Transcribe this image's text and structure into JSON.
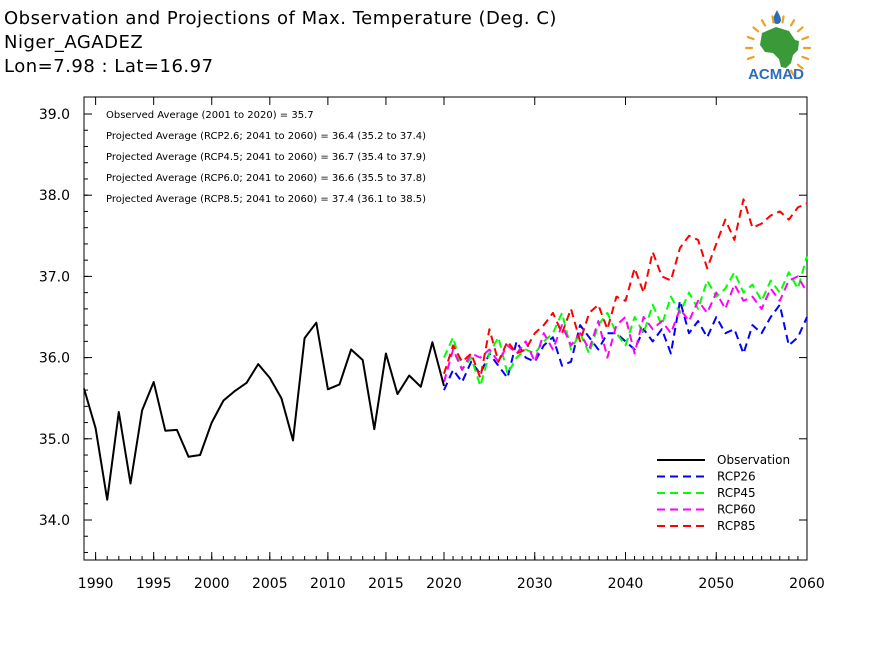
{
  "header": {
    "title_line1": "Observation and Projections of Max. Temperature (Deg. C)",
    "title_line2": "Niger_AGADEZ",
    "title_line3": "Lon=7.98 : Lat=16.97"
  },
  "logo": {
    "text": "ACMAD",
    "color_blue": "#2a6ebb",
    "color_orange": "#f0a020",
    "color_green": "#3a9a3a"
  },
  "chart_data": {
    "type": "line",
    "title": "Observation and Projections of Max. Temperature (Deg. C)",
    "xlabel": "",
    "ylabel": "",
    "xlim": [
      1989,
      2060
    ],
    "ylim": [
      33.5,
      39.3
    ],
    "x_ticks_left": [
      1990,
      1995,
      2000,
      2005,
      2010,
      2015,
      2020
    ],
    "x_ticks_right": [
      2030,
      2040,
      2050,
      2060
    ],
    "y_ticks": [
      34.0,
      35.0,
      36.0,
      37.0,
      38.0,
      39.0
    ],
    "y_tick_labels": [
      "34.0",
      "35.0",
      "36.0",
      "37.0",
      "38.0",
      "39.0"
    ],
    "annotations": [
      "Observed Average (2001 to 2020) = 35.7",
      "Projected Average (RCP2.6; 2041 to 2060) = 36.4 (35.2 to 37.4)",
      "Projected Average (RCP4.5; 2041 to 2060) = 36.7 (35.4 to 37.9)",
      "Projected Average (RCP6.0; 2041 to 2060) = 36.6 (35.5 to 37.8)",
      "Projected Average (RCP8.5; 2041 to 2060) = 37.4 (36.1 to 38.5)"
    ],
    "legend_position": "bottom-right",
    "series": [
      {
        "name": "Observation",
        "color": "#000000",
        "dashed": false,
        "x": [
          1989,
          1990,
          1991,
          1992,
          1993,
          1994,
          1995,
          1996,
          1997,
          1998,
          1999,
          2000,
          2001,
          2002,
          2003,
          2004,
          2005,
          2006,
          2007,
          2008,
          2009,
          2010,
          2011,
          2012,
          2013,
          2014,
          2015,
          2016,
          2017,
          2018,
          2019,
          2020
        ],
        "values": [
          35.62,
          35.13,
          34.25,
          35.33,
          34.45,
          35.35,
          35.7,
          35.1,
          35.11,
          34.78,
          34.8,
          35.2,
          35.47,
          35.59,
          35.69,
          35.92,
          35.75,
          35.5,
          34.98,
          36.24,
          36.43,
          35.61,
          35.67,
          36.1,
          35.97,
          35.12,
          36.05,
          35.55,
          35.78,
          35.64,
          36.19,
          35.65
        ]
      },
      {
        "name": "RCP26",
        "color": "#0000ff",
        "dashed": true,
        "x": [
          2020,
          2021,
          2022,
          2023,
          2024,
          2025,
          2026,
          2027,
          2028,
          2029,
          2030,
          2031,
          2032,
          2033,
          2034,
          2035,
          2036,
          2037,
          2038,
          2039,
          2040,
          2041,
          2042,
          2043,
          2044,
          2045,
          2046,
          2047,
          2048,
          2049,
          2050,
          2051,
          2052,
          2053,
          2054,
          2055,
          2056,
          2057,
          2058,
          2059,
          2060
        ],
        "values": [
          35.6,
          35.85,
          35.7,
          35.95,
          35.8,
          36.05,
          35.9,
          35.75,
          36.2,
          36.0,
          35.95,
          36.15,
          36.25,
          35.9,
          35.95,
          36.4,
          36.25,
          36.1,
          36.3,
          36.3,
          36.2,
          36.1,
          36.35,
          36.2,
          36.35,
          36.05,
          36.7,
          36.3,
          36.45,
          36.25,
          36.5,
          36.3,
          36.35,
          36.05,
          36.4,
          36.3,
          36.5,
          36.65,
          36.15,
          36.25,
          36.5
        ]
      },
      {
        "name": "RCP45",
        "color": "#00ff00",
        "dashed": true,
        "x": [
          2020,
          2021,
          2022,
          2023,
          2024,
          2025,
          2026,
          2027,
          2028,
          2029,
          2030,
          2031,
          2032,
          2033,
          2034,
          2035,
          2036,
          2037,
          2038,
          2039,
          2040,
          2041,
          2042,
          2043,
          2044,
          2045,
          2046,
          2047,
          2048,
          2049,
          2050,
          2051,
          2052,
          2053,
          2054,
          2055,
          2056,
          2057,
          2058,
          2059,
          2060
        ],
        "values": [
          36.0,
          36.25,
          35.85,
          36.0,
          35.65,
          36.05,
          36.25,
          35.8,
          36.0,
          36.1,
          36.05,
          36.2,
          36.3,
          36.55,
          36.1,
          36.3,
          36.05,
          36.4,
          36.55,
          36.3,
          36.15,
          36.5,
          36.3,
          36.65,
          36.4,
          36.75,
          36.55,
          36.8,
          36.6,
          36.95,
          36.75,
          36.85,
          37.05,
          36.8,
          36.9,
          36.7,
          36.95,
          36.8,
          37.05,
          36.85,
          37.25
        ]
      },
      {
        "name": "RCP60",
        "color": "#ff00ff",
        "dashed": true,
        "x": [
          2020,
          2021,
          2022,
          2023,
          2024,
          2025,
          2026,
          2027,
          2028,
          2029,
          2030,
          2031,
          2032,
          2033,
          2034,
          2035,
          2036,
          2037,
          2038,
          2039,
          2040,
          2041,
          2042,
          2043,
          2044,
          2045,
          2046,
          2047,
          2048,
          2049,
          2050,
          2051,
          2052,
          2053,
          2054,
          2055,
          2056,
          2057,
          2058,
          2059,
          2060
        ],
        "values": [
          35.7,
          36.1,
          35.85,
          36.05,
          36.0,
          36.1,
          35.95,
          36.15,
          36.05,
          36.2,
          35.95,
          36.3,
          36.1,
          36.4,
          36.15,
          36.3,
          36.1,
          36.45,
          36.0,
          36.4,
          36.5,
          36.05,
          36.5,
          36.35,
          36.45,
          36.3,
          36.6,
          36.45,
          36.7,
          36.55,
          36.8,
          36.6,
          36.9,
          36.7,
          36.75,
          36.6,
          36.85,
          36.7,
          36.95,
          37.0,
          36.8
        ]
      },
      {
        "name": "RCP85",
        "color": "#ff0000",
        "dashed": true,
        "x": [
          2020,
          2021,
          2022,
          2023,
          2024,
          2025,
          2026,
          2027,
          2028,
          2029,
          2030,
          2031,
          2032,
          2033,
          2034,
          2035,
          2036,
          2037,
          2038,
          2039,
          2040,
          2041,
          2042,
          2043,
          2044,
          2045,
          2046,
          2047,
          2048,
          2049,
          2050,
          2051,
          2052,
          2053,
          2054,
          2055,
          2056,
          2057,
          2058,
          2059,
          2060
        ],
        "values": [
          35.8,
          36.15,
          35.95,
          36.05,
          35.75,
          36.35,
          35.95,
          36.2,
          36.05,
          36.1,
          36.3,
          36.4,
          36.55,
          36.3,
          36.6,
          36.2,
          36.55,
          36.65,
          36.35,
          36.75,
          36.7,
          37.1,
          36.8,
          37.3,
          37.0,
          36.95,
          37.35,
          37.5,
          37.45,
          37.1,
          37.4,
          37.7,
          37.45,
          37.95,
          37.6,
          37.65,
          37.75,
          37.8,
          37.7,
          37.85,
          37.9
        ]
      }
    ]
  }
}
